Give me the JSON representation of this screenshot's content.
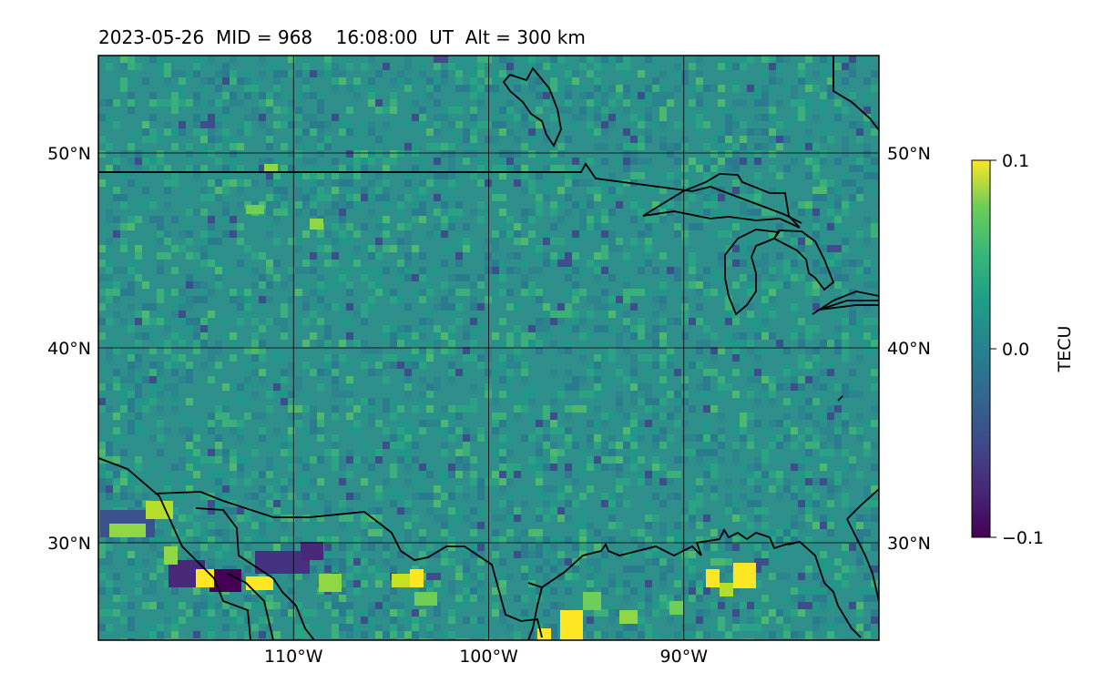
{
  "title": {
    "date": "2023-05-26",
    "mid": "MID = 968",
    "time": "16:08:00  UT",
    "alt": "Alt = 300 km"
  },
  "map": {
    "lon_range": [
      -120,
      -80
    ],
    "lat_range": [
      25,
      55
    ],
    "gridlines": true,
    "x_ticks": [
      {
        "value": -110,
        "label": "110°W"
      },
      {
        "value": -100,
        "label": "100°W"
      },
      {
        "value": -90,
        "label": "90°W"
      }
    ],
    "y_ticks": [
      {
        "value": 50,
        "label": "50°N"
      },
      {
        "value": 40,
        "label": "40°N"
      },
      {
        "value": 30,
        "label": "30°N"
      }
    ],
    "background_color": "#2f8f8a"
  },
  "colorbar": {
    "label": "TECU",
    "colormap": "viridis",
    "ticks": [
      {
        "value": 0.1,
        "label": "0.1"
      },
      {
        "value": 0.0,
        "label": "0.0"
      },
      {
        "value": -0.1,
        "label": "−0.1"
      }
    ],
    "range": [
      -0.1,
      0.1
    ]
  }
}
